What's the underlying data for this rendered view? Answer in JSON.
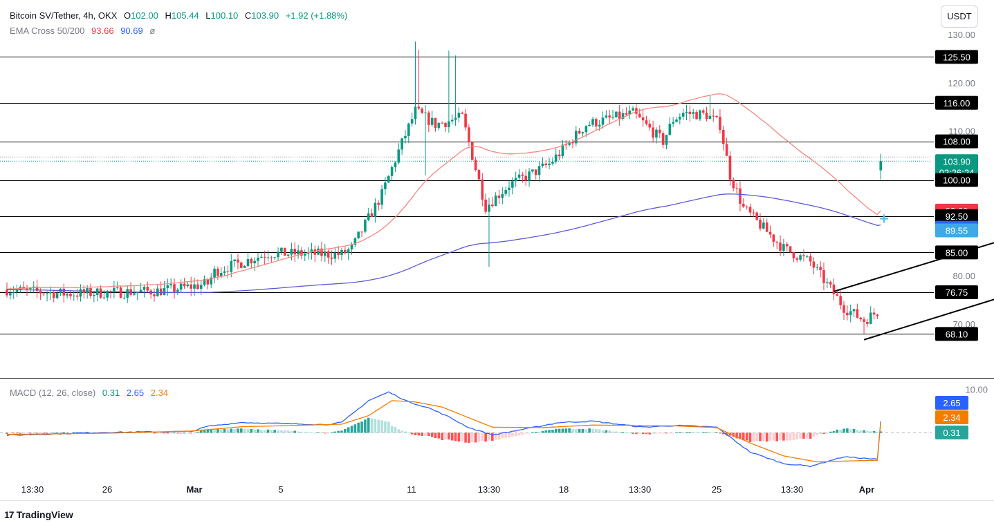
{
  "header": {
    "symbol": "Bitcoin SV/Tether, 4h, OKX",
    "o_label": "O",
    "o_value": "102.00",
    "h_label": "H",
    "h_value": "105.44",
    "l_label": "L",
    "l_value": "100.10",
    "c_label": "C",
    "c_value": "103.90",
    "change": "+1.92 (+1.88%)",
    "ema_label": "EMA Cross 50/200",
    "ema50_value": "93.66",
    "ema200_value": "90.69",
    "ema_extra": "ø",
    "macd_label": "MACD (12, 26, close)",
    "macd_hist": "0.31",
    "macd_line": "2.65",
    "macd_signal": "2.34"
  },
  "currency_button": "USDT",
  "brand": {
    "logo": "17",
    "name": "TradingView"
  },
  "colors": {
    "up": "#089981",
    "down": "#f23645",
    "ema50": "#f7867d",
    "ema200": "#5b5bd6",
    "macd": "#2962ff",
    "signal": "#f57c00",
    "price_label": "#089981",
    "level_label": "#000000"
  },
  "chart_data": [
    {
      "type": "candlestick",
      "title": "Bitcoin SV/Tether, 4h, OKX",
      "ylim": [
        64,
        131
      ],
      "y_ticks": [
        "130.00",
        "120.00",
        "110.00",
        "80.00",
        "70.00"
      ],
      "x_ticks": [
        "13:30",
        "26",
        "Mar",
        "5",
        "11",
        "13:30",
        "18",
        "13:30",
        "25",
        "13:30",
        "Apr"
      ],
      "candle_count": 262,
      "waypoints": [
        [
          0,
          77.3
        ],
        [
          18,
          76.4
        ],
        [
          35,
          76.8
        ],
        [
          45,
          77.0
        ],
        [
          52,
          77.6
        ],
        [
          60,
          78.5
        ],
        [
          62,
          81.0
        ],
        [
          78,
          84.8
        ],
        [
          100,
          84.6
        ],
        [
          103,
          85.8
        ],
        [
          112,
          97.0
        ],
        [
          117,
          106.0
        ],
        [
          122,
          114.3
        ],
        [
          128,
          111.5
        ],
        [
          136,
          113.0
        ],
        [
          143,
          94.5
        ],
        [
          150,
          99.0
        ],
        [
          156,
          101.0
        ],
        [
          162,
          103.3
        ],
        [
          173,
          111.5
        ],
        [
          187,
          113.8
        ],
        [
          196,
          108.0
        ],
        [
          199,
          112.5
        ],
        [
          202,
          113.9
        ],
        [
          209,
          113.5
        ],
        [
          213,
          111.5
        ],
        [
          216,
          101.0
        ],
        [
          220,
          94.2
        ],
        [
          226,
          90.0
        ],
        [
          232,
          85.8
        ],
        [
          240,
          83.0
        ],
        [
          246,
          77.4
        ],
        [
          250,
          73.6
        ],
        [
          256,
          70.9
        ],
        [
          262,
          73.6
        ],
        [
          270,
          82.0
        ],
        [
          280,
          79.8
        ],
        [
          287,
          80.2
        ],
        [
          291,
          77.9
        ],
        [
          298,
          86.8
        ],
        [
          305,
          89.0
        ],
        [
          311,
          87.7
        ],
        [
          320,
          89.8
        ],
        [
          333,
          91.5
        ],
        [
          342,
          93.3
        ],
        [
          347,
          91.8
        ],
        [
          355,
          95.8
        ],
        [
          362,
          100.3
        ],
        [
          368,
          97.5
        ],
        [
          372,
          100.7
        ],
        [
          378,
          97.6
        ],
        [
          380,
          97.2
        ],
        [
          383,
          98.1
        ],
        [
          385,
          103.9
        ]
      ],
      "series": [
        {
          "name": "EMA 50",
          "value": 93.66
        },
        {
          "name": "EMA 200",
          "value": 90.69
        }
      ],
      "horizontal_levels": [
        125.5,
        116.0,
        108.0,
        100.0,
        92.5,
        85.0,
        76.75,
        68.1
      ],
      "price_labels": [
        {
          "text": "125.50",
          "value": 125.5,
          "kind": "level"
        },
        {
          "text": "116.00",
          "value": 116.0,
          "kind": "level"
        },
        {
          "text": "108.00",
          "value": 108.0,
          "kind": "level"
        },
        {
          "text": "103.90",
          "value": 103.9,
          "kind": "price",
          "subtext": "02:26:24"
        },
        {
          "text": "100.00",
          "value": 100.0,
          "kind": "level"
        },
        {
          "text": "93.66",
          "value": 93.66,
          "kind": "ema50"
        },
        {
          "text": "92.50",
          "value": 92.5,
          "kind": "level"
        },
        {
          "text": "90.69",
          "value": 90.69,
          "kind": "ema200"
        },
        {
          "text": "89.55",
          "value": 89.55,
          "kind": "crosshair"
        },
        {
          "text": "85.00",
          "value": 85.0,
          "kind": "level"
        },
        {
          "text": "76.75",
          "value": 76.75,
          "kind": "level"
        },
        {
          "text": "68.10",
          "value": 68.1,
          "kind": "level"
        }
      ],
      "channel": {
        "upper": [
          [
            247,
            76.9
          ],
          [
            410,
            111.3
          ]
        ],
        "lower": [
          [
            256,
            66.9
          ],
          [
            410,
            100.0
          ]
        ]
      },
      "cross_markers": [
        [
          262,
          92.0
        ],
        [
          365,
          90.5
        ]
      ]
    },
    {
      "type": "macd",
      "title": "MACD (12, 26, close)",
      "ylim": [
        -8,
        12
      ],
      "y_ticks": [
        "10.00"
      ],
      "values": {
        "histogram": 0.31,
        "macd": 2.65,
        "signal": 2.34
      },
      "macd_waypoints": [
        [
          0,
          -0.6
        ],
        [
          30,
          0.1
        ],
        [
          55,
          0.3
        ],
        [
          60,
          1.5
        ],
        [
          70,
          2.4
        ],
        [
          95,
          1.9
        ],
        [
          100,
          2.4
        ],
        [
          108,
          7.5
        ],
        [
          114,
          9.5
        ],
        [
          120,
          7.2
        ],
        [
          126,
          5.8
        ],
        [
          132,
          3.7
        ],
        [
          138,
          1.2
        ],
        [
          145,
          -0.5
        ],
        [
          155,
          0.9
        ],
        [
          165,
          2.4
        ],
        [
          175,
          2.7
        ],
        [
          190,
          1.3
        ],
        [
          200,
          1.7
        ],
        [
          212,
          1.3
        ],
        [
          222,
          -4.5
        ],
        [
          232,
          -7.2
        ],
        [
          240,
          -7.8
        ],
        [
          250,
          -5.6
        ],
        [
          260,
          -6.2
        ],
        [
          268,
          -5.8
        ],
        [
          275,
          -3.2
        ],
        [
          290,
          -2.2
        ],
        [
          300,
          -0.7
        ],
        [
          310,
          1.0
        ],
        [
          320,
          2.0
        ],
        [
          330,
          2.2
        ],
        [
          340,
          2.2
        ],
        [
          350,
          1.7
        ],
        [
          362,
          2.8
        ],
        [
          372,
          2.5
        ],
        [
          380,
          2.1
        ],
        [
          385,
          2.65
        ]
      ],
      "signal_waypoints": [
        [
          0,
          -0.4
        ],
        [
          30,
          -0.1
        ],
        [
          55,
          0.4
        ],
        [
          70,
          1.4
        ],
        [
          100,
          2.0
        ],
        [
          108,
          4.0
        ],
        [
          115,
          7.5
        ],
        [
          122,
          7.2
        ],
        [
          130,
          6.0
        ],
        [
          138,
          3.5
        ],
        [
          145,
          1.3
        ],
        [
          160,
          1.2
        ],
        [
          175,
          1.8
        ],
        [
          200,
          1.6
        ],
        [
          212,
          1.2
        ],
        [
          222,
          -2.4
        ],
        [
          232,
          -5.4
        ],
        [
          242,
          -6.8
        ],
        [
          255,
          -6.5
        ],
        [
          268,
          -6.3
        ],
        [
          280,
          -4.0
        ],
        [
          295,
          -2.6
        ],
        [
          310,
          0.0
        ],
        [
          325,
          1.4
        ],
        [
          345,
          1.9
        ],
        [
          362,
          2.3
        ],
        [
          375,
          2.3
        ],
        [
          385,
          2.34
        ]
      ]
    }
  ]
}
